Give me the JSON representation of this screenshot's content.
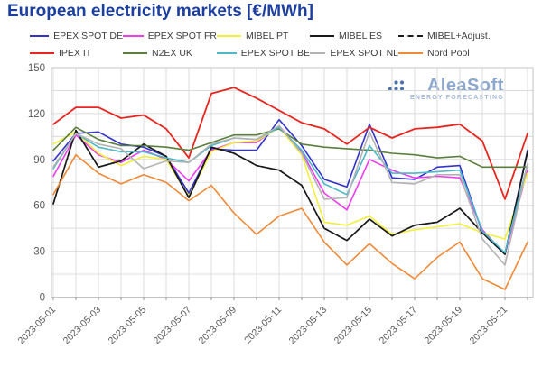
{
  "title": "European electricity markets [€/MWh]",
  "logo": {
    "name": "AleaSoft",
    "tagline": "ENERGY FORECASTING"
  },
  "colors": {
    "title": "#1c3f9f",
    "grid": "#dcdcdc",
    "frame": "#c4c4c4",
    "axis_text": "#595959",
    "tick": "#9a9a9a",
    "logo_dots": "#4d72ad",
    "logo_text": "#8ca7ce",
    "logo_tagline": "#a5b9da"
  },
  "chart_data": {
    "type": "line",
    "title": "European electricity markets [€/MWh]",
    "xlabel": "",
    "ylabel": "",
    "ylim": [
      0,
      150
    ],
    "grid_step": 15,
    "ytick_step": 30,
    "yticks": [
      0,
      30,
      60,
      90,
      120,
      150
    ],
    "grid": true,
    "legend_position": "top",
    "x": [
      "2023-05-01",
      "2023-05-02",
      "2023-05-03",
      "2023-05-04",
      "2023-05-05",
      "2023-05-06",
      "2023-05-07",
      "2023-05-08",
      "2023-05-09",
      "2023-05-10",
      "2023-05-11",
      "2023-05-12",
      "2023-05-13",
      "2023-05-14",
      "2023-05-15",
      "2023-05-16",
      "2023-05-17",
      "2023-05-18",
      "2023-05-19",
      "2023-05-20",
      "2023-05-21",
      "2023-05-22"
    ],
    "xtick_labels": [
      "2023-05-01",
      "2023-05-03",
      "2023-05-05",
      "2023-05-07",
      "2023-05-09",
      "2023-05-11",
      "2023-05-13",
      "2023-05-15",
      "2023-05-17",
      "2023-05-19",
      "2023-05-21"
    ],
    "series": [
      {
        "name": "EPEX SPOT DE",
        "color": "#3333cc",
        "dash": false,
        "values": [
          89,
          107,
          108,
          100,
          98,
          92,
          68,
          97,
          96,
          96,
          116,
          99,
          77,
          72,
          113,
          78,
          77,
          85,
          86,
          42,
          28,
          96
        ]
      },
      {
        "name": "EPEX SPOT FR",
        "color": "#ee3cee",
        "dash": false,
        "values": [
          79,
          106,
          93,
          88,
          96,
          90,
          76,
          96,
          101,
          101,
          112,
          95,
          68,
          57,
          90,
          83,
          78,
          79,
          78,
          44,
          28,
          83
        ]
      },
      {
        "name": "MIBEL PT",
        "color": "#f2ef3d",
        "dash": false,
        "values": [
          100,
          108,
          94,
          86,
          92,
          90,
          66,
          95,
          101,
          102,
          111,
          93,
          49,
          47,
          53,
          41,
          44,
          46,
          48,
          42,
          38,
          81
        ]
      },
      {
        "name": "MIBEL ES",
        "color": "#1a1a1a",
        "dash": false,
        "values": [
          61,
          109,
          85,
          89,
          100,
          92,
          65,
          98,
          94,
          86,
          83,
          73,
          45,
          37,
          51,
          40,
          47,
          49,
          58,
          42,
          28,
          95
        ]
      },
      {
        "name": "MIBEL+Adjust.",
        "color": "#1a1a1a",
        "dash": true,
        "values": [
          61,
          109,
          85,
          89,
          100,
          92,
          65,
          98,
          94,
          86,
          83,
          73,
          45,
          37,
          51,
          40,
          47,
          49,
          58,
          42,
          28,
          95
        ]
      },
      {
        "name": "IPEX IT",
        "color": "#e8251e",
        "dash": false,
        "values": [
          113,
          124,
          124,
          117,
          119,
          110,
          91,
          133,
          137,
          130,
          122,
          114,
          110,
          100,
          111,
          104,
          110,
          111,
          113,
          102,
          64,
          107
        ]
      },
      {
        "name": "N2EX UK",
        "color": "#5a7f3c",
        "dash": false,
        "values": [
          96,
          111,
          103,
          99,
          99,
          98,
          96,
          101,
          106,
          106,
          110,
          100,
          98,
          97,
          96,
          94,
          93,
          91,
          92,
          85,
          85,
          85
        ]
      },
      {
        "name": "EPEX SPOT BE",
        "color": "#4cb8c8",
        "dash": false,
        "values": [
          84,
          107,
          98,
          95,
          95,
          91,
          88,
          99,
          104,
          103,
          111,
          96,
          74,
          67,
          99,
          81,
          81,
          82,
          83,
          43,
          29,
          87
        ]
      },
      {
        "name": "EPEX SPOT NL",
        "color": "#b3b3b3",
        "dash": false,
        "values": [
          85,
          107,
          100,
          97,
          84,
          89,
          88,
          100,
          104,
          103,
          112,
          94,
          64,
          65,
          108,
          75,
          74,
          80,
          80,
          38,
          21,
          87
        ]
      },
      {
        "name": "Nord Pool",
        "color": "#ef8a38",
        "dash": false,
        "values": [
          67,
          93,
          81,
          74,
          80,
          75,
          63,
          73,
          55,
          41,
          53,
          58,
          36,
          21,
          35,
          22,
          12,
          26,
          36,
          12,
          5,
          36
        ]
      }
    ]
  }
}
